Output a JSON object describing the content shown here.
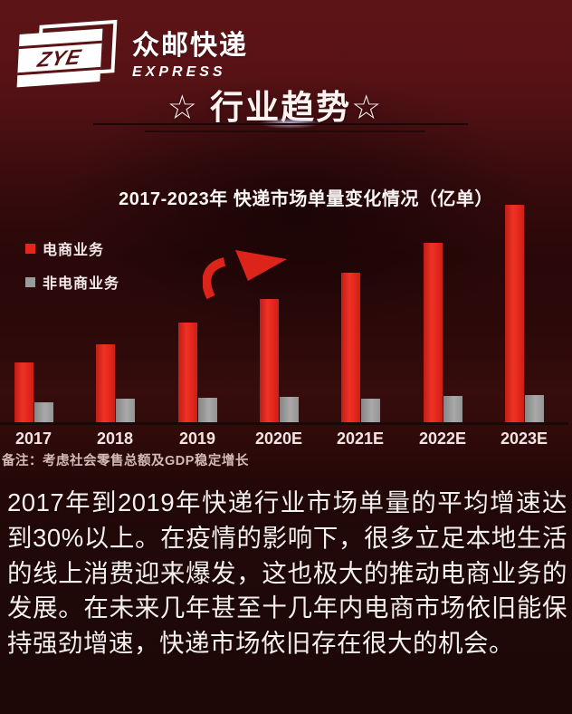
{
  "header": {
    "logo": {
      "monogram": "ZYE",
      "brand_name": "众邮快递",
      "brand_subtitle": "EXPRESS"
    },
    "section_title": "☆ 行业趋势☆"
  },
  "chart": {
    "title": "2017-2023年 快递市场单量变化情况（亿单）",
    "legend": [
      {
        "label": "电商业务",
        "color": "#e8251c"
      },
      {
        "label": "非电商业务",
        "color": "#9b9b9b"
      }
    ],
    "note": "备注：考虑社会零售总额及GDP稳定增长"
  },
  "chart_data": {
    "type": "bar",
    "title": "2017-2023年 快递市场单量变化情况（亿单）",
    "unit": "亿单",
    "categories": [
      "2017",
      "2018",
      "2019",
      "2020E",
      "2021E",
      "2022E",
      "2023E"
    ],
    "series": [
      {
        "name": "电商业务",
        "color": "#e8251c",
        "values": [
          300,
          390,
          500,
          620,
          750,
          900,
          1090
        ]
      },
      {
        "name": "非电商业务",
        "color": "#9b9b9b",
        "values": [
          100,
          118,
          122,
          127,
          120,
          130,
          135
        ]
      }
    ],
    "ylim": [
      0,
      1150
    ],
    "grid": false,
    "y_axis_labels_shown": false,
    "legend_position": "top-left",
    "annotations": [
      "upward-trend-arrow"
    ]
  },
  "body_text": "2017年到2019年快递行业市场单量的平均增速达到30%以上。在疫情的影响下，很多立足本地生活的线上消费迎来爆发，这也极大的推动电商业务的发展。在未来几年甚至十几年内电商市场依旧能保持强劲增速，快递市场依旧存在很大的机会。",
  "colors": {
    "background_top": "#5d1417",
    "background_bottom": "#1d0807",
    "bar_red": "#e8251c",
    "bar_gray": "#9b9b9b",
    "text_light": "#f6efed"
  }
}
